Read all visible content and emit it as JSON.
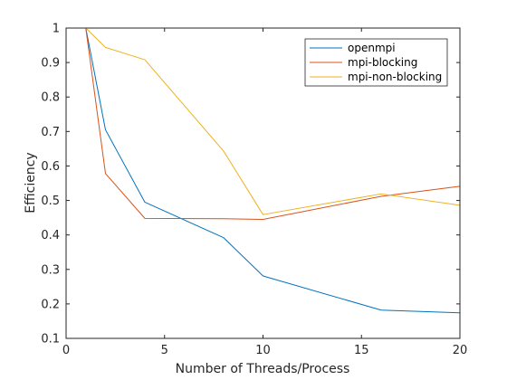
{
  "chart_data": {
    "type": "line",
    "title": "",
    "xlabel": "Number of Threads/Process",
    "ylabel": "Efficiency",
    "xlim": [
      0,
      20
    ],
    "ylim": [
      0.1,
      1
    ],
    "xticks": [
      0,
      5,
      10,
      15,
      20
    ],
    "yticks": [
      0.1,
      0.2,
      0.3,
      0.4,
      0.5,
      0.6,
      0.7,
      0.8,
      0.9,
      1
    ],
    "xtick_labels": [
      "0",
      "5",
      "10",
      "15",
      "20"
    ],
    "ytick_labels": [
      "0.1",
      "0.2",
      "0.3",
      "0.4",
      "0.5",
      "0.6",
      "0.7",
      "0.8",
      "0.9",
      "1"
    ],
    "grid": false,
    "legend_position": "top-right",
    "series": [
      {
        "name": "openmpi",
        "color": "#0072BD",
        "x": [
          1,
          2,
          4,
          8,
          10,
          16,
          20
        ],
        "y": [
          1.0,
          0.705,
          0.495,
          0.392,
          0.281,
          0.182,
          0.174
        ]
      },
      {
        "name": "mpi-blocking",
        "color": "#D95319",
        "x": [
          1,
          2,
          4,
          8,
          10,
          16,
          20
        ],
        "y": [
          1.0,
          0.578,
          0.448,
          0.447,
          0.445,
          0.512,
          0.541
        ]
      },
      {
        "name": "mpi-non-blocking",
        "color": "#EDB120",
        "x": [
          1,
          2,
          4,
          8,
          10,
          16,
          20
        ],
        "y": [
          1.0,
          0.944,
          0.908,
          0.643,
          0.459,
          0.519,
          0.486
        ]
      }
    ]
  }
}
